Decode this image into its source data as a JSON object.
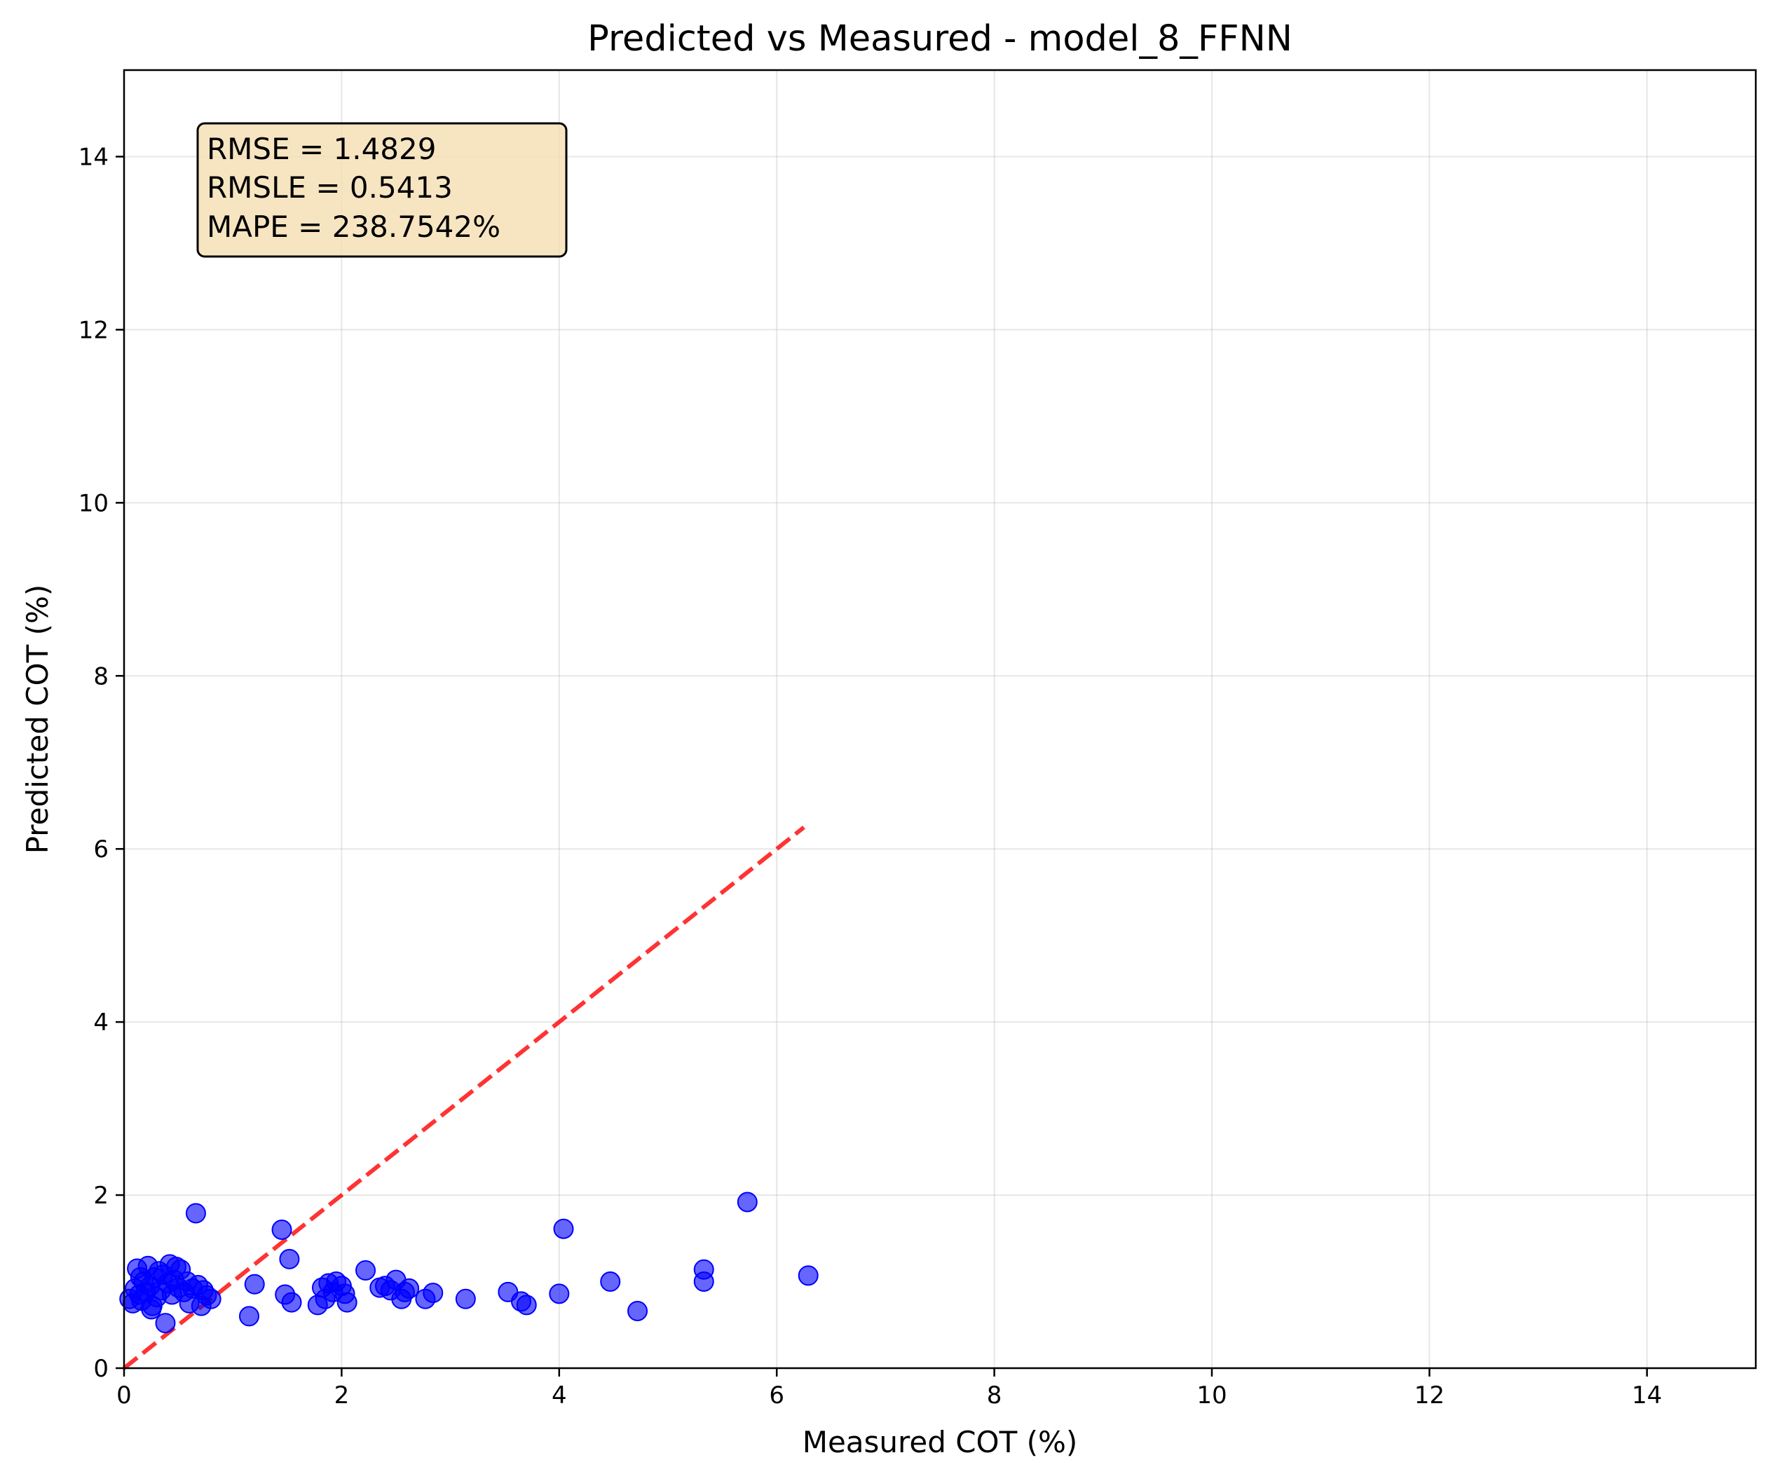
{
  "chart_data": {
    "type": "scatter",
    "title": "Predicted vs Measured - model_8_FFNN",
    "xlabel": "Measured COT (%)",
    "ylabel": "Predicted COT (%)",
    "xlim": [
      0,
      15
    ],
    "ylim": [
      0,
      15
    ],
    "xticks": [
      0,
      2,
      4,
      6,
      8,
      10,
      12,
      14
    ],
    "yticks": [
      0,
      2,
      4,
      6,
      8,
      10,
      12,
      14
    ],
    "grid": true,
    "point_color": "#0000ff",
    "point_opacity": 0.6,
    "reference_line": {
      "x": [
        0,
        6.25
      ],
      "y": [
        0,
        6.25
      ],
      "color": "#ff0000",
      "style": "dashed"
    },
    "stats_box": {
      "lines": [
        "RMSE = 1.4829",
        "RMSLE = 0.5413",
        "MAPE = 238.7542%"
      ],
      "background": "#f5deb3",
      "placement": "top-left"
    },
    "points": [
      {
        "x": 0.05,
        "y": 0.8
      },
      {
        "x": 0.08,
        "y": 0.75
      },
      {
        "x": 0.1,
        "y": 0.92
      },
      {
        "x": 0.12,
        "y": 1.15
      },
      {
        "x": 0.14,
        "y": 0.85
      },
      {
        "x": 0.16,
        "y": 0.78
      },
      {
        "x": 0.18,
        "y": 1.0
      },
      {
        "x": 0.2,
        "y": 0.88
      },
      {
        "x": 0.22,
        "y": 1.18
      },
      {
        "x": 0.24,
        "y": 0.95
      },
      {
        "x": 0.26,
        "y": 0.72
      },
      {
        "x": 0.28,
        "y": 1.05
      },
      {
        "x": 0.3,
        "y": 0.82
      },
      {
        "x": 0.32,
        "y": 1.12
      },
      {
        "x": 0.34,
        "y": 0.9
      },
      {
        "x": 0.36,
        "y": 1.08
      },
      {
        "x": 0.38,
        "y": 0.52
      },
      {
        "x": 0.4,
        "y": 0.98
      },
      {
        "x": 0.42,
        "y": 1.2
      },
      {
        "x": 0.44,
        "y": 0.85
      },
      {
        "x": 0.46,
        "y": 1.02
      },
      {
        "x": 0.48,
        "y": 1.17
      },
      {
        "x": 0.5,
        "y": 0.93
      },
      {
        "x": 0.52,
        "y": 1.14
      },
      {
        "x": 0.55,
        "y": 0.88
      },
      {
        "x": 0.58,
        "y": 1.0
      },
      {
        "x": 0.6,
        "y": 0.75
      },
      {
        "x": 0.63,
        "y": 0.92
      },
      {
        "x": 0.66,
        "y": 1.79
      },
      {
        "x": 0.68,
        "y": 0.96
      },
      {
        "x": 0.71,
        "y": 0.72
      },
      {
        "x": 0.73,
        "y": 0.9
      },
      {
        "x": 0.76,
        "y": 0.84
      },
      {
        "x": 0.8,
        "y": 0.8
      },
      {
        "x": 0.25,
        "y": 0.68
      },
      {
        "x": 0.15,
        "y": 1.05
      },
      {
        "x": 1.15,
        "y": 0.6
      },
      {
        "x": 1.2,
        "y": 0.97
      },
      {
        "x": 1.45,
        "y": 1.6
      },
      {
        "x": 1.48,
        "y": 0.85
      },
      {
        "x": 1.52,
        "y": 1.26
      },
      {
        "x": 1.54,
        "y": 0.76
      },
      {
        "x": 1.78,
        "y": 0.73
      },
      {
        "x": 1.82,
        "y": 0.93
      },
      {
        "x": 1.85,
        "y": 0.8
      },
      {
        "x": 1.88,
        "y": 0.98
      },
      {
        "x": 1.92,
        "y": 0.88
      },
      {
        "x": 1.95,
        "y": 1.0
      },
      {
        "x": 2.0,
        "y": 0.95
      },
      {
        "x": 2.03,
        "y": 0.86
      },
      {
        "x": 2.05,
        "y": 0.76
      },
      {
        "x": 2.22,
        "y": 1.13
      },
      {
        "x": 2.35,
        "y": 0.93
      },
      {
        "x": 2.4,
        "y": 0.95
      },
      {
        "x": 2.45,
        "y": 0.9
      },
      {
        "x": 2.5,
        "y": 1.02
      },
      {
        "x": 2.55,
        "y": 0.8
      },
      {
        "x": 2.58,
        "y": 0.88
      },
      {
        "x": 2.62,
        "y": 0.92
      },
      {
        "x": 2.77,
        "y": 0.8
      },
      {
        "x": 2.84,
        "y": 0.87
      },
      {
        "x": 3.14,
        "y": 0.8
      },
      {
        "x": 3.53,
        "y": 0.88
      },
      {
        "x": 3.65,
        "y": 0.77
      },
      {
        "x": 3.7,
        "y": 0.73
      },
      {
        "x": 4.0,
        "y": 0.86
      },
      {
        "x": 4.04,
        "y": 1.61
      },
      {
        "x": 4.47,
        "y": 1.0
      },
      {
        "x": 4.72,
        "y": 0.66
      },
      {
        "x": 5.33,
        "y": 1.14
      },
      {
        "x": 5.33,
        "y": 1.0
      },
      {
        "x": 5.73,
        "y": 1.92
      },
      {
        "x": 6.29,
        "y": 1.07
      }
    ]
  }
}
